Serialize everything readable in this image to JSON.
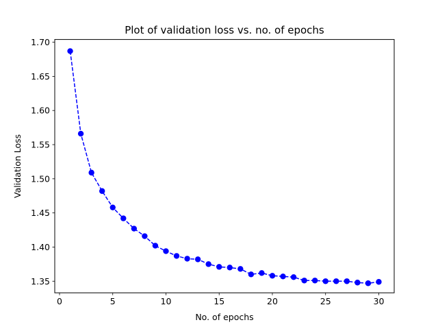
{
  "chart_data": {
    "type": "line",
    "title": "Plot of validation loss vs. no. of epochs",
    "xlabel": "No. of epochs",
    "ylabel": "Validation Loss",
    "xlim": [
      -0.45,
      31.45
    ],
    "ylim": [
      1.333,
      1.704
    ],
    "xticks": [
      0,
      5,
      10,
      15,
      20,
      25,
      30
    ],
    "xtick_labels": [
      "0",
      "5",
      "10",
      "15",
      "20",
      "25",
      "30"
    ],
    "yticks": [
      1.35,
      1.4,
      1.45,
      1.5,
      1.55,
      1.6,
      1.65,
      1.7
    ],
    "ytick_labels": [
      "1.35",
      "1.40",
      "1.45",
      "1.50",
      "1.55",
      "1.60",
      "1.65",
      "1.70"
    ],
    "grid": false,
    "series": [
      {
        "name": "validation loss",
        "color": "#0000ff",
        "line_style": "dashed",
        "marker": "circle",
        "x": [
          1,
          2,
          3,
          4,
          5,
          6,
          7,
          8,
          9,
          10,
          11,
          12,
          13,
          14,
          15,
          16,
          17,
          18,
          19,
          20,
          21,
          22,
          23,
          24,
          25,
          26,
          27,
          28,
          29,
          30
        ],
        "values": [
          1.687,
          1.566,
          1.509,
          1.482,
          1.458,
          1.442,
          1.427,
          1.416,
          1.402,
          1.394,
          1.387,
          1.383,
          1.382,
          1.375,
          1.371,
          1.37,
          1.368,
          1.36,
          1.362,
          1.358,
          1.357,
          1.356,
          1.351,
          1.351,
          1.35,
          1.35,
          1.35,
          1.348,
          1.347,
          1.349
        ]
      }
    ]
  }
}
